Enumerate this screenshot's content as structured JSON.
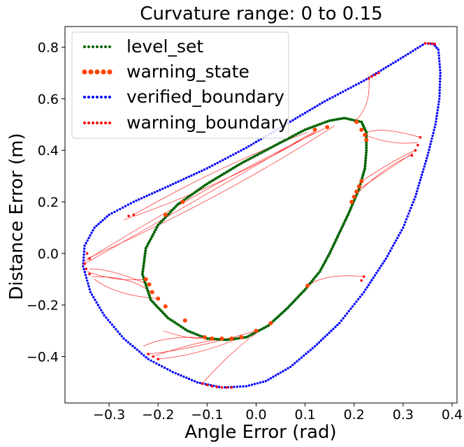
{
  "chart_data": {
    "type": "scatter",
    "title": "Curvature range: 0 to 0.15",
    "xlabel": "Angle Error (rad)",
    "ylabel": "Distance Error (m)",
    "xlim": [
      -0.39,
      0.41
    ],
    "ylim": [
      -0.58,
      0.88
    ],
    "xticks": [
      -0.3,
      -0.2,
      -0.1,
      0.0,
      0.1,
      0.2,
      0.3,
      0.4
    ],
    "xtick_labels": [
      "−0.3",
      "−0.2",
      "−0.1",
      "0.0",
      "0.1",
      "0.2",
      "0.3",
      "0.4"
    ],
    "yticks": [
      -0.4,
      -0.2,
      0.0,
      0.2,
      0.4,
      0.6,
      0.8
    ],
    "ytick_labels": [
      "−0.4",
      "−0.2",
      "0.0",
      "0.2",
      "0.4",
      "0.6",
      "0.8"
    ],
    "grid": false,
    "legend_position": "top-left",
    "legend": [
      {
        "label": "level_set",
        "color": "#006400",
        "marker_size": "small"
      },
      {
        "label": "warning_state",
        "color": "#ff4500",
        "marker_size": "large"
      },
      {
        "label": "verified_boundary",
        "color": "#0000ff",
        "marker_size": "small"
      },
      {
        "label": "warning_boundary",
        "color": "#ff0000",
        "marker_size": "small"
      }
    ],
    "series": [
      {
        "name": "level_set",
        "color": "#006400",
        "outline": [
          [
            0.18,
            0.525
          ],
          [
            0.215,
            0.51
          ],
          [
            0.225,
            0.47
          ],
          [
            0.225,
            0.4
          ],
          [
            0.222,
            0.33
          ],
          [
            0.21,
            0.25
          ],
          [
            0.19,
            0.16
          ],
          [
            0.17,
            0.08
          ],
          [
            0.15,
            0.0
          ],
          [
            0.13,
            -0.07
          ],
          [
            0.1,
            -0.14
          ],
          [
            0.065,
            -0.21
          ],
          [
            0.025,
            -0.28
          ],
          [
            -0.02,
            -0.325
          ],
          [
            -0.06,
            -0.335
          ],
          [
            -0.1,
            -0.33
          ],
          [
            -0.14,
            -0.3
          ],
          [
            -0.18,
            -0.25
          ],
          [
            -0.215,
            -0.18
          ],
          [
            -0.232,
            -0.08
          ],
          [
            -0.225,
            0.02
          ],
          [
            -0.2,
            0.11
          ],
          [
            -0.16,
            0.19
          ],
          [
            -0.1,
            0.27
          ],
          [
            -0.03,
            0.35
          ],
          [
            0.04,
            0.42
          ],
          [
            0.1,
            0.48
          ],
          [
            0.15,
            0.515
          ],
          [
            0.18,
            0.525
          ]
        ]
      },
      {
        "name": "warning_state",
        "color": "#ff4500",
        "points": [
          [
            0.205,
            0.51
          ],
          [
            0.215,
            0.48
          ],
          [
            0.222,
            0.46
          ],
          [
            0.225,
            0.44
          ],
          [
            0.145,
            0.49
          ],
          [
            0.12,
            0.48
          ],
          [
            0.215,
            0.28
          ],
          [
            0.21,
            0.26
          ],
          [
            0.205,
            0.24
          ],
          [
            0.2,
            0.22
          ],
          [
            0.195,
            0.2
          ],
          [
            0.105,
            -0.125
          ],
          [
            0.03,
            -0.27
          ],
          [
            0.0,
            -0.3
          ],
          [
            -0.03,
            -0.325
          ],
          [
            -0.05,
            -0.33
          ],
          [
            -0.07,
            -0.33
          ],
          [
            -0.09,
            -0.33
          ],
          [
            -0.105,
            -0.325
          ],
          [
            -0.145,
            -0.26
          ],
          [
            -0.185,
            -0.205
          ],
          [
            -0.2,
            -0.175
          ],
          [
            -0.212,
            -0.15
          ],
          [
            -0.218,
            -0.12
          ],
          [
            -0.225,
            -0.1
          ],
          [
            -0.185,
            0.15
          ],
          [
            -0.15,
            0.2
          ]
        ]
      },
      {
        "name": "verified_boundary",
        "color": "#0000ff",
        "outline": [
          [
            0.345,
            0.815
          ],
          [
            0.362,
            0.812
          ],
          [
            0.372,
            0.79
          ],
          [
            0.376,
            0.7
          ],
          [
            0.374,
            0.6
          ],
          [
            0.366,
            0.5
          ],
          [
            0.35,
            0.38
          ],
          [
            0.325,
            0.22
          ],
          [
            0.3,
            0.1
          ],
          [
            0.265,
            -0.02
          ],
          [
            0.22,
            -0.15
          ],
          [
            0.17,
            -0.27
          ],
          [
            0.12,
            -0.36
          ],
          [
            0.07,
            -0.44
          ],
          [
            0.02,
            -0.495
          ],
          [
            -0.02,
            -0.515
          ],
          [
            -0.07,
            -0.52
          ],
          [
            -0.12,
            -0.5
          ],
          [
            -0.17,
            -0.46
          ],
          [
            -0.22,
            -0.41
          ],
          [
            -0.27,
            -0.33
          ],
          [
            -0.31,
            -0.24
          ],
          [
            -0.338,
            -0.15
          ],
          [
            -0.353,
            -0.05
          ],
          [
            -0.35,
            0.03
          ],
          [
            -0.33,
            0.1
          ],
          [
            -0.3,
            0.15
          ],
          [
            -0.25,
            0.2
          ],
          [
            -0.18,
            0.26
          ],
          [
            -0.1,
            0.33
          ],
          [
            -0.02,
            0.41
          ],
          [
            0.06,
            0.5
          ],
          [
            0.14,
            0.59
          ],
          [
            0.22,
            0.67
          ],
          [
            0.29,
            0.75
          ],
          [
            0.345,
            0.815
          ]
        ]
      },
      {
        "name": "warning_boundary",
        "color": "#ff0000",
        "points": [
          [
            0.345,
            0.815
          ],
          [
            0.352,
            0.815
          ],
          [
            0.359,
            0.814
          ],
          [
            0.365,
            0.812
          ],
          [
            0.25,
            0.7
          ],
          [
            0.243,
            0.693
          ],
          [
            0.236,
            0.686
          ],
          [
            0.23,
            0.679
          ],
          [
            0.335,
            0.45
          ],
          [
            0.33,
            0.42
          ],
          [
            0.325,
            0.4
          ],
          [
            0.318,
            0.38
          ],
          [
            0.22,
            -0.09
          ],
          [
            0.215,
            -0.105
          ],
          [
            -0.05,
            -0.52
          ],
          [
            -0.06,
            -0.52
          ],
          [
            -0.07,
            -0.52
          ],
          [
            -0.08,
            -0.518
          ],
          [
            -0.09,
            -0.515
          ],
          [
            -0.1,
            -0.51
          ],
          [
            -0.11,
            -0.505
          ],
          [
            -0.2,
            -0.41
          ],
          [
            -0.21,
            -0.4
          ],
          [
            -0.22,
            -0.39
          ],
          [
            -0.34,
            -0.02
          ],
          [
            -0.345,
            0.0
          ],
          [
            -0.35,
            -0.04
          ],
          [
            -0.347,
            -0.06
          ],
          [
            -0.34,
            -0.08
          ],
          [
            -0.25,
            0.15
          ],
          [
            -0.26,
            0.145
          ]
        ]
      }
    ],
    "trajectories": [
      {
        "from": [
          -0.35,
          -0.04
        ],
        "to": [
          0.12,
          0.475
        ]
      },
      {
        "from": [
          -0.35,
          -0.03
        ],
        "to": [
          0.14,
          0.485
        ]
      },
      {
        "from": [
          -0.345,
          -0.02
        ],
        "to": [
          0.16,
          0.495
        ]
      },
      {
        "from": [
          -0.34,
          -0.06
        ],
        "to": [
          -0.22,
          -0.12
        ]
      },
      {
        "from": [
          -0.345,
          -0.07
        ],
        "to": [
          -0.225,
          -0.1
        ]
      },
      {
        "from": [
          -0.335,
          -0.09
        ],
        "to": [
          -0.215,
          -0.15
        ]
      },
      {
        "from": [
          -0.33,
          -0.1
        ],
        "to": [
          -0.2,
          -0.175
        ]
      },
      {
        "from": [
          -0.25,
          0.15
        ],
        "to": [
          0.105,
          0.47
        ]
      },
      {
        "from": [
          -0.27,
          0.13
        ],
        "to": [
          0.12,
          0.47
        ]
      },
      {
        "from": [
          0.335,
          0.45
        ],
        "to": [
          0.225,
          0.47
        ]
      },
      {
        "from": [
          0.33,
          0.43
        ],
        "to": [
          0.222,
          0.46
        ]
      },
      {
        "from": [
          0.325,
          0.4
        ],
        "to": [
          0.215,
          0.28
        ]
      },
      {
        "from": [
          0.32,
          0.39
        ],
        "to": [
          0.21,
          0.25
        ]
      },
      {
        "from": [
          0.315,
          0.38
        ],
        "to": [
          0.2,
          0.22
        ]
      },
      {
        "from": [
          0.23,
          0.68
        ],
        "to": [
          0.2,
          0.51
        ]
      },
      {
        "from": [
          0.22,
          -0.09
        ],
        "to": [
          0.105,
          -0.125
        ]
      },
      {
        "from": [
          -0.2,
          -0.41
        ],
        "to": [
          -0.03,
          -0.325
        ]
      },
      {
        "from": [
          -0.21,
          -0.4
        ],
        "to": [
          -0.05,
          -0.33
        ]
      },
      {
        "from": [
          -0.22,
          -0.39
        ],
        "to": [
          0.0,
          -0.3
        ]
      },
      {
        "from": [
          -0.11,
          -0.505
        ],
        "to": [
          0.03,
          -0.27
        ]
      },
      {
        "from": [
          -0.19,
          -0.3
        ],
        "to": [
          -0.105,
          -0.325
        ]
      },
      {
        "from": [
          -0.23,
          -0.36
        ],
        "to": [
          -0.09,
          -0.33
        ]
      }
    ]
  }
}
